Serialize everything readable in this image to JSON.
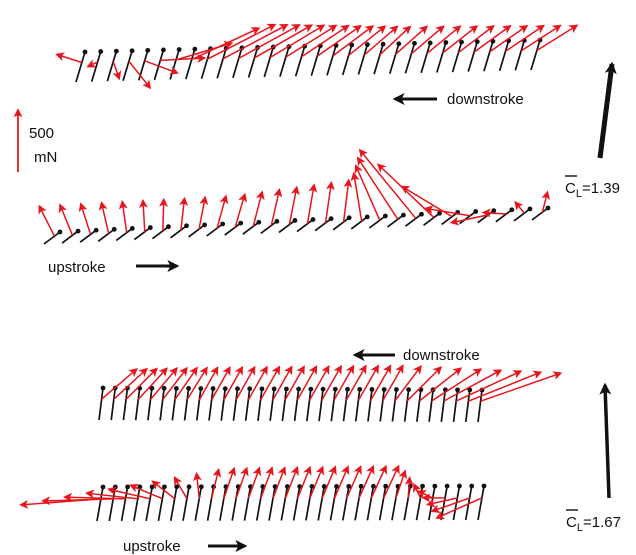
{
  "colors": {
    "force_vector": "#e8141c",
    "wing_chord": "#111111",
    "mean_lift_arrow": "#111111"
  },
  "scale_bar": {
    "value": "500",
    "unit": "mN"
  },
  "panels": [
    {
      "downstroke_label": "downstroke",
      "upstroke_label": "upstroke",
      "mean_lift_symbol": "C",
      "mean_lift_subscript": "L",
      "mean_lift_value": "=1.39"
    },
    {
      "downstroke_label": "downstroke",
      "upstroke_label": "upstroke",
      "mean_lift_symbol": "C",
      "mean_lift_subscript": "L",
      "mean_lift_value": "=1.67"
    }
  ]
}
